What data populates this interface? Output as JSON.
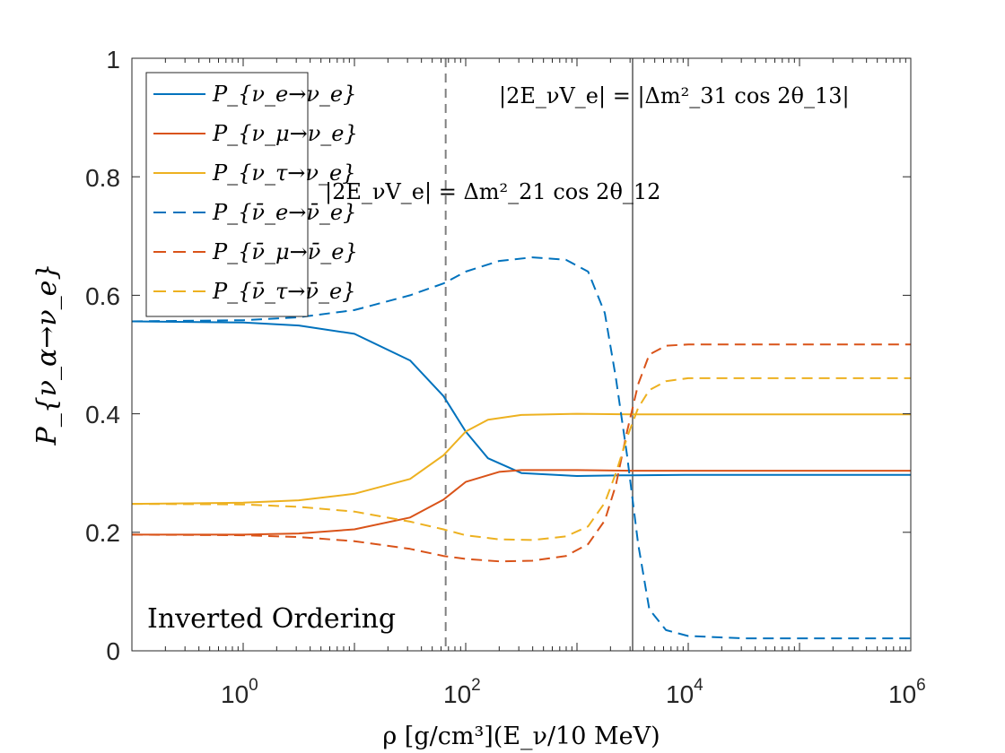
{
  "chart_data": {
    "type": "line",
    "x_scale": "log10",
    "xlim_log10": [
      -1,
      6
    ],
    "ylim": [
      0,
      1
    ],
    "x_ticks": [
      {
        "log10": 0,
        "base": "10",
        "exp": "0"
      },
      {
        "log10": 2,
        "base": "10",
        "exp": "2"
      },
      {
        "log10": 4,
        "base": "10",
        "exp": "4"
      },
      {
        "log10": 6,
        "base": "10",
        "exp": "6"
      }
    ],
    "y_ticks": [
      {
        "value": 0,
        "label": "0"
      },
      {
        "value": 0.2,
        "label": "0.2"
      },
      {
        "value": 0.4,
        "label": "0.4"
      },
      {
        "value": 0.6,
        "label": "0.6"
      },
      {
        "value": 0.8,
        "label": "0.8"
      },
      {
        "value": 1,
        "label": "1"
      }
    ],
    "xlabel": "ρ [g/cm³](E_ν/10 MeV)",
    "ylabel": "P_{ν_α→ν_e}",
    "grid": false,
    "legend_position": "top-left",
    "annotation_text": "Inverted Ordering",
    "vlines": [
      {
        "x_log10": 1.82,
        "style": "dashed",
        "color": "#808080",
        "label": "|2E_νV_e| = Δm²_21 cos 2θ_12"
      },
      {
        "x_log10": 3.5,
        "style": "solid",
        "color": "#808080",
        "label": "|2E_νV_e| = |Δm²_31 cos 2θ_13|"
      }
    ],
    "series": [
      {
        "name": "P_{ν_e→ν_e}",
        "color": "#0072BD",
        "dash": "solid",
        "points": [
          [
            -1,
            0.556
          ],
          [
            0,
            0.554
          ],
          [
            0.5,
            0.549
          ],
          [
            1,
            0.535
          ],
          [
            1.5,
            0.49
          ],
          [
            1.8,
            0.43
          ],
          [
            2,
            0.37
          ],
          [
            2.2,
            0.325
          ],
          [
            2.5,
            0.3
          ],
          [
            3,
            0.295
          ],
          [
            3.4,
            0.296
          ],
          [
            3.5,
            0.296
          ],
          [
            4,
            0.297
          ],
          [
            6,
            0.297
          ]
        ]
      },
      {
        "name": "P_{ν_μ→ν_e}",
        "color": "#D95319",
        "dash": "solid",
        "points": [
          [
            -1,
            0.196
          ],
          [
            0,
            0.196
          ],
          [
            0.5,
            0.198
          ],
          [
            1,
            0.205
          ],
          [
            1.5,
            0.225
          ],
          [
            1.8,
            0.255
          ],
          [
            2,
            0.285
          ],
          [
            2.3,
            0.302
          ],
          [
            2.5,
            0.305
          ],
          [
            3,
            0.305
          ],
          [
            3.5,
            0.304
          ],
          [
            4,
            0.304
          ],
          [
            6,
            0.304
          ]
        ]
      },
      {
        "name": "P_{ν_τ→ν_e}",
        "color": "#EDB120",
        "dash": "solid",
        "points": [
          [
            -1,
            0.248
          ],
          [
            0,
            0.25
          ],
          [
            0.5,
            0.254
          ],
          [
            1,
            0.265
          ],
          [
            1.5,
            0.29
          ],
          [
            1.8,
            0.33
          ],
          [
            2,
            0.37
          ],
          [
            2.2,
            0.39
          ],
          [
            2.5,
            0.398
          ],
          [
            3,
            0.4
          ],
          [
            3.5,
            0.399
          ],
          [
            4,
            0.399
          ],
          [
            6,
            0.399
          ]
        ]
      },
      {
        "name": "P_{ν̄_e→ν̄_e}",
        "color": "#0072BD",
        "dash": "dashed",
        "points": [
          [
            -1,
            0.556
          ],
          [
            0,
            0.558
          ],
          [
            0.5,
            0.563
          ],
          [
            1,
            0.575
          ],
          [
            1.5,
            0.6
          ],
          [
            1.8,
            0.62
          ],
          [
            2,
            0.64
          ],
          [
            2.3,
            0.658
          ],
          [
            2.6,
            0.664
          ],
          [
            2.9,
            0.66
          ],
          [
            3.1,
            0.64
          ],
          [
            3.25,
            0.57
          ],
          [
            3.35,
            0.46
          ],
          [
            3.45,
            0.33
          ],
          [
            3.55,
            0.18
          ],
          [
            3.65,
            0.07
          ],
          [
            3.8,
            0.035
          ],
          [
            4,
            0.025
          ],
          [
            4.5,
            0.021
          ],
          [
            6,
            0.021
          ]
        ]
      },
      {
        "name": "P_{ν̄_μ→ν̄_e}",
        "color": "#D95319",
        "dash": "dashed",
        "points": [
          [
            -1,
            0.196
          ],
          [
            0,
            0.195
          ],
          [
            0.5,
            0.192
          ],
          [
            1,
            0.185
          ],
          [
            1.5,
            0.172
          ],
          [
            1.8,
            0.16
          ],
          [
            2,
            0.155
          ],
          [
            2.3,
            0.151
          ],
          [
            2.6,
            0.152
          ],
          [
            2.9,
            0.16
          ],
          [
            3.1,
            0.18
          ],
          [
            3.25,
            0.22
          ],
          [
            3.35,
            0.28
          ],
          [
            3.45,
            0.37
          ],
          [
            3.55,
            0.45
          ],
          [
            3.65,
            0.5
          ],
          [
            3.8,
            0.515
          ],
          [
            4,
            0.517
          ],
          [
            6,
            0.517
          ]
        ]
      },
      {
        "name": "P_{ν̄_τ→ν̄_e}",
        "color": "#EDB120",
        "dash": "dashed",
        "points": [
          [
            -1,
            0.248
          ],
          [
            0,
            0.247
          ],
          [
            0.5,
            0.243
          ],
          [
            1,
            0.235
          ],
          [
            1.5,
            0.218
          ],
          [
            1.8,
            0.205
          ],
          [
            2,
            0.195
          ],
          [
            2.3,
            0.188
          ],
          [
            2.6,
            0.187
          ],
          [
            2.9,
            0.193
          ],
          [
            3.1,
            0.21
          ],
          [
            3.25,
            0.25
          ],
          [
            3.35,
            0.3
          ],
          [
            3.45,
            0.36
          ],
          [
            3.55,
            0.41
          ],
          [
            3.65,
            0.44
          ],
          [
            3.8,
            0.455
          ],
          [
            4,
            0.46
          ],
          [
            6,
            0.46
          ]
        ]
      }
    ]
  }
}
